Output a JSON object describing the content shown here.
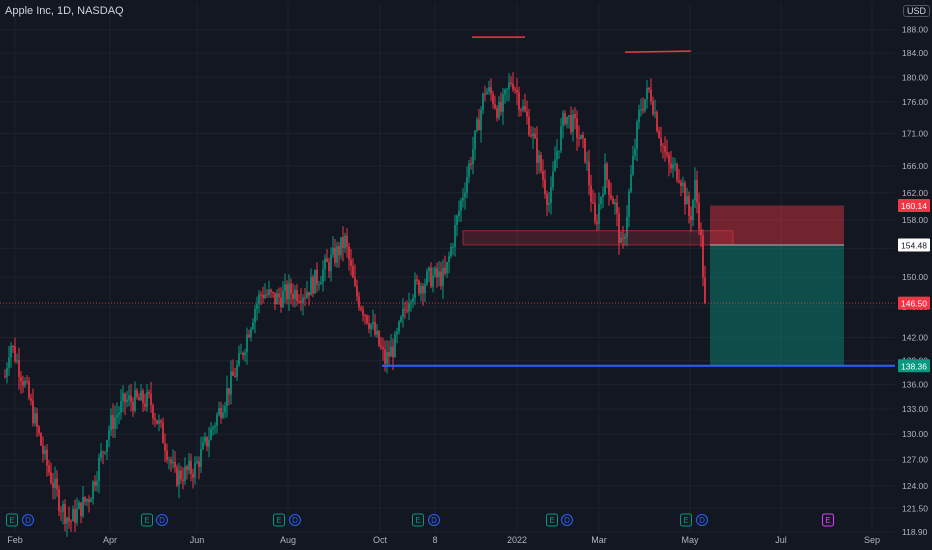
{
  "header": {
    "symbol_title": "Apple Inc, 1D, NASDAQ",
    "currency": "USD"
  },
  "chart_data": {
    "type": "candlestick",
    "title": "Apple Inc, 1D, NASDAQ",
    "currency": "USD",
    "log_scale": true,
    "grid": true,
    "ylim": [
      118.9,
      190.0
    ],
    "x_tick_labels": [
      "Feb",
      "Apr",
      "Jun",
      "Aug",
      "Oct",
      "8",
      "2022",
      "Mar",
      "May",
      "Jul",
      "Sep"
    ],
    "y_tick_labels": [
      "118.90",
      "121.50",
      "124.00",
      "127.00",
      "130.00",
      "133.00",
      "136.00",
      "139.00",
      "142.00",
      "146.00",
      "150.00",
      "154.00",
      "158.00",
      "162.00",
      "166.00",
      "171.00",
      "176.00",
      "180.00",
      "184.00",
      "188.00"
    ],
    "price_path_close": [
      {
        "date": "Feb",
        "close": 136.5
      },
      {
        "date": "Mar",
        "close": 122.0
      },
      {
        "date": "Apr",
        "close": 134.0
      },
      {
        "date": "May",
        "close": 124.0
      },
      {
        "date": "Jun",
        "close": 126.5
      },
      {
        "date": "Jul",
        "close": 145.0
      },
      {
        "date": "Aug",
        "close": 149.0
      },
      {
        "date": "Sep",
        "close": 156.0
      },
      {
        "date": "Oct",
        "close": 140.5
      },
      {
        "date": "Nov",
        "close": 151.5
      },
      {
        "date": "Dec",
        "close": 178.0
      },
      {
        "date": "Jan",
        "close": 171.0
      },
      {
        "date": "Feb",
        "close": 168.0
      },
      {
        "date": "Mar",
        "close": 164.0
      },
      {
        "date": "Apr",
        "close": 176.0
      },
      {
        "date": "May",
        "close": 146.5
      }
    ],
    "price_labels": [
      {
        "label": "160.14",
        "value": 160.14,
        "color": "#f23645"
      },
      {
        "label": "154.48",
        "value": 154.48,
        "color": "#ffffff"
      },
      {
        "label": "146.50",
        "value": 146.5,
        "color": "#f23645"
      },
      {
        "label": "138.36",
        "value": 138.36,
        "color": "#089981"
      }
    ],
    "events": [
      {
        "type": "earnings",
        "label": "E",
        "date": "Jan"
      },
      {
        "type": "dividend",
        "label": "D",
        "date": "Feb"
      },
      {
        "type": "earnings",
        "label": "E",
        "date": "Apr"
      },
      {
        "type": "dividend",
        "label": "D",
        "date": "May"
      },
      {
        "type": "earnings",
        "label": "E",
        "date": "Jul"
      },
      {
        "type": "dividend",
        "label": "D",
        "date": "Aug"
      },
      {
        "type": "earnings",
        "label": "E",
        "date": "Oct"
      },
      {
        "type": "dividend",
        "label": "D",
        "date": "Nov"
      },
      {
        "type": "earnings",
        "label": "E",
        "date": "Jan"
      },
      {
        "type": "dividend",
        "label": "D",
        "date": "Feb"
      },
      {
        "type": "earnings",
        "label": "E",
        "date": "Apr"
      },
      {
        "type": "dividend",
        "label": "D",
        "date": "May"
      },
      {
        "type": "earnings_upcoming",
        "label": "E",
        "date": "Jul"
      }
    ],
    "annotations": {
      "resistance_highs": [
        183.0,
        182.0
      ],
      "support_zone": [
        154.48,
        156.5
      ],
      "support_line": 138.36,
      "position": {
        "entry": 154.48,
        "stop": 160.14,
        "target": 138.36
      }
    },
    "colors": {
      "up": "#089981",
      "down": "#f23645",
      "background": "#131722",
      "grid": "#1e222d",
      "text": "#b2b5be",
      "support_line": "#2962ff"
    }
  }
}
